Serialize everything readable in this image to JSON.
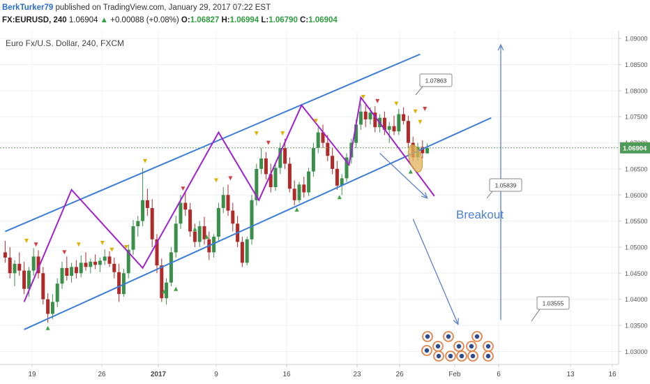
{
  "header": {
    "author": "BerkTurker79",
    "published": "published on TradingView.com, January 29, 2017 07:22 EST",
    "symbol": "FX:EURUSD, 240",
    "last": "1.06904",
    "change": "+0.00088 (+0.08%)",
    "o_label": "O:",
    "o": "1.06827",
    "h_label": "H:",
    "h": "1.06994",
    "l_label": "L:",
    "l": "1.06790",
    "c_label": "C:",
    "c": "1.06904"
  },
  "chart_data": {
    "type": "candlestick",
    "title": "Euro Fx/U.S. Dollar, 240, FXCM",
    "ylim": [
      1.0275,
      1.0915
    ],
    "y_ticks": [
      "1.09000",
      "1.08500",
      "1.08000",
      "1.07500",
      "1.07000",
      "1.06500",
      "1.06000",
      "1.05500",
      "1.05000",
      "1.04500",
      "1.04000",
      "1.03500",
      "1.03000"
    ],
    "x_ticks": [
      "19",
      "26",
      "2017",
      "9",
      "16",
      "23",
      "26",
      "Feb",
      "6",
      "13",
      "16"
    ],
    "last_price": "1.06904",
    "grid": true,
    "colors": {
      "up": "#3a8f4a",
      "down": "#b12a2a",
      "channel": "#3b7dd8",
      "zigzag": "#a020d0",
      "arrow": "#5b82c8",
      "price_line": "#6aa06a",
      "price_badge": "#4f9a58"
    },
    "annotations": {
      "peak_label": "1.07863",
      "target1_label": "1.05839",
      "target2_label": "1.03555",
      "breakout_text": "Breakout"
    },
    "channel_upper": [
      [
        0.1,
        1.053
      ],
      [
        17.6,
        1.087
      ]
    ],
    "channel_lower": [
      [
        0.9,
        1.0342
      ],
      [
        20.6,
        1.0748
      ]
    ],
    "zigzag": [
      [
        0.9,
        1.0395
      ],
      [
        2.9,
        1.061
      ],
      [
        5.9,
        1.046
      ],
      [
        9.1,
        1.072
      ],
      [
        10.8,
        1.059
      ],
      [
        12.6,
        1.0772
      ],
      [
        14.6,
        1.0658
      ],
      [
        15.1,
        1.0787
      ],
      [
        18.2,
        1.0598
      ]
    ],
    "arrows": [
      {
        "from": [
          15.9,
          1.068
        ],
        "to": [
          17.9,
          1.0594
        ]
      },
      {
        "from": [
          17.3,
          1.0554
        ],
        "to": [
          19.2,
          1.0352
        ]
      },
      {
        "from": [
          21.0,
          1.036
        ],
        "to": [
          21.0,
          1.0888
        ]
      }
    ],
    "candles": [
      {
        "x": 0.1,
        "o": 1.049,
        "h": 1.0512,
        "l": 1.047,
        "c": 1.048
      },
      {
        "x": 0.3,
        "o": 1.048,
        "h": 1.05,
        "l": 1.044,
        "c": 1.045
      },
      {
        "x": 0.5,
        "o": 1.045,
        "h": 1.0475,
        "l": 1.0425,
        "c": 1.0468
      },
      {
        "x": 0.7,
        "o": 1.0468,
        "h": 1.049,
        "l": 1.0445,
        "c": 1.0455
      },
      {
        "x": 0.9,
        "o": 1.0455,
        "h": 1.0472,
        "l": 1.041,
        "c": 1.042
      },
      {
        "x": 1.1,
        "o": 1.042,
        "h": 1.0462,
        "l": 1.0405,
        "c": 1.0455
      },
      {
        "x": 1.3,
        "o": 1.0455,
        "h": 1.0498,
        "l": 1.0445,
        "c": 1.0482
      },
      {
        "x": 1.5,
        "o": 1.0482,
        "h": 1.0494,
        "l": 1.044,
        "c": 1.045
      },
      {
        "x": 1.7,
        "o": 1.045,
        "h": 1.0462,
        "l": 1.039,
        "c": 1.04
      },
      {
        "x": 1.9,
        "o": 1.04,
        "h": 1.0412,
        "l": 1.0355,
        "c": 1.0372
      },
      {
        "x": 2.1,
        "o": 1.0372,
        "h": 1.041,
        "l": 1.0362,
        "c": 1.0395
      },
      {
        "x": 2.3,
        "o": 1.0395,
        "h": 1.044,
        "l": 1.0385,
        "c": 1.043
      },
      {
        "x": 2.5,
        "o": 1.043,
        "h": 1.0472,
        "l": 1.042,
        "c": 1.046
      },
      {
        "x": 2.7,
        "o": 1.046,
        "h": 1.0482,
        "l": 1.0436,
        "c": 1.0445
      },
      {
        "x": 2.9,
        "o": 1.0445,
        "h": 1.047,
        "l": 1.0432,
        "c": 1.0462
      },
      {
        "x": 3.1,
        "o": 1.0462,
        "h": 1.0475,
        "l": 1.044,
        "c": 1.045
      },
      {
        "x": 3.3,
        "o": 1.045,
        "h": 1.0484,
        "l": 1.0442,
        "c": 1.047
      },
      {
        "x": 3.5,
        "o": 1.047,
        "h": 1.049,
        "l": 1.0455,
        "c": 1.0462
      },
      {
        "x": 3.7,
        "o": 1.0462,
        "h": 1.0478,
        "l": 1.045,
        "c": 1.0472
      },
      {
        "x": 3.9,
        "o": 1.0472,
        "h": 1.0486,
        "l": 1.0458,
        "c": 1.0466
      },
      {
        "x": 4.1,
        "o": 1.0466,
        "h": 1.048,
        "l": 1.0452,
        "c": 1.0474
      },
      {
        "x": 4.3,
        "o": 1.0474,
        "h": 1.0496,
        "l": 1.0466,
        "c": 1.0482
      },
      {
        "x": 4.5,
        "o": 1.0482,
        "h": 1.0492,
        "l": 1.0462,
        "c": 1.0468
      },
      {
        "x": 4.7,
        "o": 1.0468,
        "h": 1.048,
        "l": 1.044,
        "c": 1.0452
      },
      {
        "x": 4.9,
        "o": 1.0452,
        "h": 1.0468,
        "l": 1.0395,
        "c": 1.041
      },
      {
        "x": 5.1,
        "o": 1.041,
        "h": 1.0458,
        "l": 1.0405,
        "c": 1.045
      },
      {
        "x": 5.3,
        "o": 1.045,
        "h": 1.0505,
        "l": 1.044,
        "c": 1.0495
      },
      {
        "x": 5.5,
        "o": 1.0495,
        "h": 1.0552,
        "l": 1.0485,
        "c": 1.054
      },
      {
        "x": 5.7,
        "o": 1.054,
        "h": 1.056,
        "l": 1.052,
        "c": 1.055
      },
      {
        "x": 5.9,
        "o": 1.055,
        "h": 1.0652,
        "l": 1.054,
        "c": 1.059
      },
      {
        "x": 6.1,
        "o": 1.059,
        "h": 1.0612,
        "l": 1.056,
        "c": 1.0575
      },
      {
        "x": 6.3,
        "o": 1.0575,
        "h": 1.0592,
        "l": 1.05,
        "c": 1.0515
      },
      {
        "x": 6.5,
        "o": 1.0515,
        "h": 1.0525,
        "l": 1.045,
        "c": 1.0465
      },
      {
        "x": 6.7,
        "o": 1.0465,
        "h": 1.0478,
        "l": 1.0395,
        "c": 1.0402
      },
      {
        "x": 6.9,
        "o": 1.0402,
        "h": 1.044,
        "l": 1.039,
        "c": 1.0432
      },
      {
        "x": 7.1,
        "o": 1.0432,
        "h": 1.05,
        "l": 1.0425,
        "c": 1.049
      },
      {
        "x": 7.3,
        "o": 1.049,
        "h": 1.056,
        "l": 1.048,
        "c": 1.0545
      },
      {
        "x": 7.5,
        "o": 1.0545,
        "h": 1.06,
        "l": 1.0535,
        "c": 1.0585
      },
      {
        "x": 7.7,
        "o": 1.0585,
        "h": 1.0605,
        "l": 1.056,
        "c": 1.0572
      },
      {
        "x": 7.9,
        "o": 1.0572,
        "h": 1.0585,
        "l": 1.052,
        "c": 1.053
      },
      {
        "x": 8.1,
        "o": 1.053,
        "h": 1.0545,
        "l": 1.05,
        "c": 1.051
      },
      {
        "x": 8.3,
        "o": 1.051,
        "h": 1.055,
        "l": 1.05,
        "c": 1.054
      },
      {
        "x": 8.5,
        "o": 1.054,
        "h": 1.0558,
        "l": 1.0505,
        "c": 1.0515
      },
      {
        "x": 8.7,
        "o": 1.0515,
        "h": 1.053,
        "l": 1.0475,
        "c": 1.049
      },
      {
        "x": 8.9,
        "o": 1.049,
        "h": 1.0525,
        "l": 1.048,
        "c": 1.052
      },
      {
        "x": 9.1,
        "o": 1.052,
        "h": 1.0585,
        "l": 1.051,
        "c": 1.0575
      },
      {
        "x": 9.3,
        "o": 1.0575,
        "h": 1.0615,
        "l": 1.0565,
        "c": 1.06
      },
      {
        "x": 9.5,
        "o": 1.06,
        "h": 1.062,
        "l": 1.056,
        "c": 1.057
      },
      {
        "x": 9.7,
        "o": 1.057,
        "h": 1.0585,
        "l": 1.053,
        "c": 1.0545
      },
      {
        "x": 9.9,
        "o": 1.0545,
        "h": 1.056,
        "l": 1.05,
        "c": 1.051
      },
      {
        "x": 10.1,
        "o": 1.051,
        "h": 1.052,
        "l": 1.0462,
        "c": 1.047
      },
      {
        "x": 10.3,
        "o": 1.047,
        "h": 1.052,
        "l": 1.0465,
        "c": 1.0515
      },
      {
        "x": 10.5,
        "o": 1.0515,
        "h": 1.06,
        "l": 1.0505,
        "c": 1.059
      },
      {
        "x": 10.7,
        "o": 1.059,
        "h": 1.066,
        "l": 1.058,
        "c": 1.065
      },
      {
        "x": 10.9,
        "o": 1.065,
        "h": 1.069,
        "l": 1.064,
        "c": 1.067
      },
      {
        "x": 11.1,
        "o": 1.067,
        "h": 1.0682,
        "l": 1.063,
        "c": 1.064
      },
      {
        "x": 11.3,
        "o": 1.064,
        "h": 1.066,
        "l": 1.0605,
        "c": 1.0615
      },
      {
        "x": 11.5,
        "o": 1.0615,
        "h": 1.066,
        "l": 1.0608,
        "c": 1.0652
      },
      {
        "x": 11.7,
        "o": 1.0652,
        "h": 1.07,
        "l": 1.064,
        "c": 1.069
      },
      {
        "x": 11.9,
        "o": 1.069,
        "h": 1.0708,
        "l": 1.065,
        "c": 1.066
      },
      {
        "x": 12.1,
        "o": 1.066,
        "h": 1.0672,
        "l": 1.0605,
        "c": 1.0612
      },
      {
        "x": 12.3,
        "o": 1.0612,
        "h": 1.0628,
        "l": 1.058,
        "c": 1.059
      },
      {
        "x": 12.5,
        "o": 1.059,
        "h": 1.0625,
        "l": 1.0585,
        "c": 1.062
      },
      {
        "x": 12.7,
        "o": 1.062,
        "h": 1.0635,
        "l": 1.0595,
        "c": 1.0605
      },
      {
        "x": 12.9,
        "o": 1.0605,
        "h": 1.0652,
        "l": 1.0598,
        "c": 1.0645
      },
      {
        "x": 13.1,
        "o": 1.0645,
        "h": 1.07,
        "l": 1.0635,
        "c": 1.069
      },
      {
        "x": 13.3,
        "o": 1.069,
        "h": 1.073,
        "l": 1.068,
        "c": 1.072
      },
      {
        "x": 13.5,
        "o": 1.072,
        "h": 1.0735,
        "l": 1.069,
        "c": 1.07
      },
      {
        "x": 13.7,
        "o": 1.07,
        "h": 1.0715,
        "l": 1.0665,
        "c": 1.0675
      },
      {
        "x": 13.9,
        "o": 1.0675,
        "h": 1.069,
        "l": 1.064,
        "c": 1.065
      },
      {
        "x": 14.1,
        "o": 1.065,
        "h": 1.0665,
        "l": 1.061,
        "c": 1.0618
      },
      {
        "x": 14.3,
        "o": 1.0618,
        "h": 1.064,
        "l": 1.06,
        "c": 1.0632
      },
      {
        "x": 14.5,
        "o": 1.0632,
        "h": 1.068,
        "l": 1.0625,
        "c": 1.0672
      },
      {
        "x": 14.7,
        "o": 1.0672,
        "h": 1.0708,
        "l": 1.066,
        "c": 1.07
      },
      {
        "x": 14.9,
        "o": 1.07,
        "h": 1.0745,
        "l": 1.069,
        "c": 1.0735
      },
      {
        "x": 15.1,
        "o": 1.0735,
        "h": 1.0775,
        "l": 1.0725,
        "c": 1.076
      },
      {
        "x": 15.3,
        "o": 1.076,
        "h": 1.0772,
        "l": 1.073,
        "c": 1.0745
      },
      {
        "x": 15.5,
        "o": 1.0745,
        "h": 1.0768,
        "l": 1.0735,
        "c": 1.0758
      },
      {
        "x": 15.7,
        "o": 1.0758,
        "h": 1.077,
        "l": 1.072,
        "c": 1.073
      },
      {
        "x": 15.9,
        "o": 1.073,
        "h": 1.0755,
        "l": 1.072,
        "c": 1.0748
      },
      {
        "x": 16.1,
        "o": 1.0748,
        "h": 1.076,
        "l": 1.0715,
        "c": 1.0725
      },
      {
        "x": 16.3,
        "o": 1.0725,
        "h": 1.074,
        "l": 1.07,
        "c": 1.0732
      },
      {
        "x": 16.5,
        "o": 1.0732,
        "h": 1.0752,
        "l": 1.0715,
        "c": 1.0722
      },
      {
        "x": 16.7,
        "o": 1.0722,
        "h": 1.0765,
        "l": 1.0715,
        "c": 1.0755
      },
      {
        "x": 16.9,
        "o": 1.0755,
        "h": 1.0768,
        "l": 1.0735,
        "c": 1.0742
      },
      {
        "x": 17.1,
        "o": 1.0742,
        "h": 1.0752,
        "l": 1.069,
        "c": 1.07
      },
      {
        "x": 17.3,
        "o": 1.07,
        "h": 1.0712,
        "l": 1.0665,
        "c": 1.0672
      },
      {
        "x": 17.5,
        "o": 1.0672,
        "h": 1.07,
        "l": 1.0665,
        "c": 1.0692
      },
      {
        "x": 17.7,
        "o": 1.0692,
        "h": 1.0705,
        "l": 1.067,
        "c": 1.068
      },
      {
        "x": 17.9,
        "o": 1.068,
        "h": 1.0699,
        "l": 1.0679,
        "c": 1.069
      }
    ],
    "markers": [
      {
        "x": 1.0,
        "y": 1.0512,
        "t": "dn",
        "c": "#e0b000"
      },
      {
        "x": 1.4,
        "y": 1.0505,
        "t": "dn",
        "c": "#d04040"
      },
      {
        "x": 1.9,
        "y": 1.0345,
        "t": "up",
        "c": "#3da34a"
      },
      {
        "x": 2.6,
        "y": 1.049,
        "t": "dn",
        "c": "#d04040"
      },
      {
        "x": 3.2,
        "y": 1.0505,
        "t": "dn",
        "c": "#e0b000"
      },
      {
        "x": 4.2,
        "y": 1.0508,
        "t": "dn",
        "c": "#e0b000"
      },
      {
        "x": 4.6,
        "y": 1.0495,
        "t": "dn",
        "c": "#e0b000"
      },
      {
        "x": 5.2,
        "y": 1.05,
        "t": "dn",
        "c": "#e0b000"
      },
      {
        "x": 6.0,
        "y": 1.0665,
        "t": "dn",
        "c": "#e0b000"
      },
      {
        "x": 6.8,
        "y": 1.0415,
        "t": "up",
        "c": "#3da34a"
      },
      {
        "x": 7.3,
        "y": 1.042,
        "t": "up",
        "c": "#3da34a"
      },
      {
        "x": 7.6,
        "y": 1.0612,
        "t": "dn",
        "c": "#d04040"
      },
      {
        "x": 8.1,
        "y": 1.0535,
        "t": "up",
        "c": "#3da34a"
      },
      {
        "x": 8.6,
        "y": 1.052,
        "t": "up",
        "c": "#3da34a"
      },
      {
        "x": 9.0,
        "y": 1.0628,
        "t": "dn",
        "c": "#e0b000"
      },
      {
        "x": 9.6,
        "y": 1.0632,
        "t": "dn",
        "c": "#d04040"
      },
      {
        "x": 10.7,
        "y": 1.0718,
        "t": "dn",
        "c": "#e0b000"
      },
      {
        "x": 11.2,
        "y": 1.07,
        "t": "dn",
        "c": "#d04040"
      },
      {
        "x": 11.8,
        "y": 1.0718,
        "t": "dn",
        "c": "#e0b000"
      },
      {
        "x": 12.4,
        "y": 1.0572,
        "t": "up",
        "c": "#3da34a"
      },
      {
        "x": 13.2,
        "y": 1.0742,
        "t": "dn",
        "c": "#e0b000"
      },
      {
        "x": 14.2,
        "y": 1.0596,
        "t": "up",
        "c": "#3da34a"
      },
      {
        "x": 15.2,
        "y": 1.0788,
        "t": "dn",
        "c": "#e0b000"
      },
      {
        "x": 15.8,
        "y": 1.078,
        "t": "dn",
        "c": "#d04040"
      },
      {
        "x": 16.6,
        "y": 1.0775,
        "t": "dn",
        "c": "#e0b000"
      },
      {
        "x": 17.4,
        "y": 1.076,
        "t": "dn",
        "c": "#e0b000"
      },
      {
        "x": 17.6,
        "y": 1.074,
        "t": "dn",
        "c": "#e0b000"
      },
      {
        "x": 17.8,
        "y": 1.0765,
        "t": "dn",
        "c": "#d04040"
      },
      {
        "x": 17.2,
        "y": 1.0645,
        "t": "up",
        "c": "#3da34a"
      }
    ]
  }
}
